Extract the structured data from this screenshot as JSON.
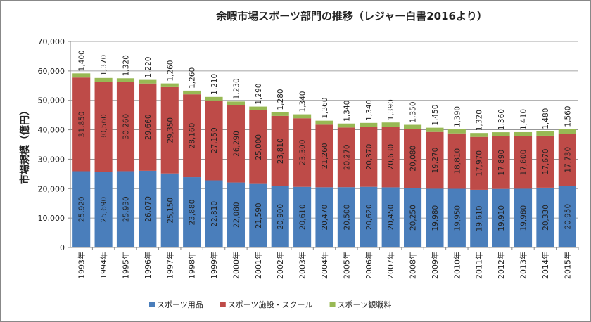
{
  "chart_data": {
    "type": "stacked_bar",
    "title": "余暇市場スポーツ部門の推移（レジャー白書2016より）",
    "y_label": "市場規模（億円）",
    "categories": [
      "1993年",
      "1994年",
      "1995年",
      "1996年",
      "1997年",
      "1998年",
      "1999年",
      "2000年",
      "2001年",
      "2002年",
      "2003年",
      "2004年",
      "2005年",
      "2006年",
      "2007年",
      "2008年",
      "2009年",
      "2010年",
      "2011年",
      "2012年",
      "2013年",
      "2014年",
      "2015年"
    ],
    "series": [
      {
        "name": "スポーツ用品",
        "color": "#4a7ebb",
        "values": [
          25920,
          25690,
          25930,
          26070,
          25150,
          23880,
          22810,
          22080,
          21590,
          20900,
          20610,
          20470,
          20500,
          20620,
          20450,
          20250,
          19980,
          19950,
          19610,
          19910,
          19980,
          20330,
          20950
        ],
        "value_labels": [
          "25,920",
          "25,690",
          "25,930",
          "26,070",
          "25,150",
          "23,880",
          "22,810",
          "22,080",
          "21,590",
          "20,900",
          "20,610",
          "20,470",
          "20,500",
          "20,620",
          "20,450",
          "20,250",
          "19,980",
          "19,950",
          "19,610",
          "19,910",
          "19,980",
          "20,330",
          "20,950"
        ]
      },
      {
        "name": "スポーツ施設・スクール",
        "color": "#be4b48",
        "values": [
          31850,
          30560,
          30260,
          29660,
          29350,
          28160,
          27150,
          26290,
          25000,
          23810,
          23300,
          21260,
          20270,
          20370,
          20630,
          20080,
          19270,
          18810,
          17970,
          17890,
          17800,
          17670,
          17730
        ],
        "value_labels": [
          "31,850",
          "30,560",
          "30,260",
          "29,660",
          "29,350",
          "28,160",
          "27,150",
          "26,290",
          "25,000",
          "23,810",
          "23,300",
          "21,260",
          "20,270",
          "20,370",
          "20,630",
          "20,080",
          "19,270",
          "18,810",
          "17,970",
          "17,890",
          "17,800",
          "17,670",
          "17,730"
        ]
      },
      {
        "name": "スポーツ観戦料",
        "color": "#98b954",
        "values": [
          1400,
          1370,
          1320,
          1220,
          1260,
          1260,
          1210,
          1230,
          1290,
          1280,
          1340,
          1360,
          1340,
          1340,
          1390,
          1350,
          1450,
          1390,
          1320,
          1360,
          1410,
          1480,
          1560
        ],
        "value_labels": [
          "1,400",
          "1,370",
          "1,320",
          "1,220",
          "1,260",
          "1,260",
          "1,210",
          "1,230",
          "1,290",
          "1,280",
          "1,340",
          "1,360",
          "1,340",
          "1,340",
          "1,390",
          "1,350",
          "1,450",
          "1,390",
          "1,320",
          "1,360",
          "1,410",
          "1,480",
          "1,560"
        ]
      }
    ],
    "ylim": [
      0,
      70000
    ],
    "yticks": [
      0,
      {
        "value": 10000,
        "label": "10,000"
      },
      {
        "value": 20000,
        "label": "20,000"
      },
      {
        "value": 30000,
        "label": "30,000"
      },
      {
        "value": 40000,
        "label": "40,000"
      },
      {
        "value": 50000,
        "label": "50,000"
      },
      {
        "value": 60000,
        "label": "60,000"
      },
      {
        "value": 70000,
        "label": "70,000"
      }
    ],
    "grid": true,
    "legend": "bottom"
  }
}
